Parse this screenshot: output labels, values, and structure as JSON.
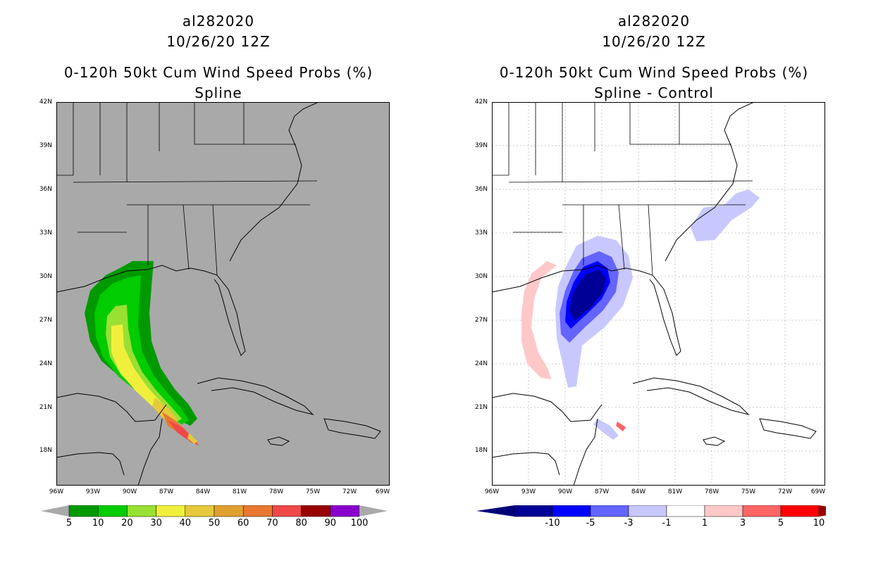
{
  "left_panel": {
    "storm_id": "al282020",
    "datetime": "10/26/20 12Z",
    "product": "0-120h 50kt Cum Wind Speed Probs (%)",
    "subtitle": "Spline",
    "background": "#a9a9a9",
    "colorbar": {
      "labels": [
        "5",
        "10",
        "20",
        "30",
        "40",
        "50",
        "60",
        "70",
        "80",
        "90",
        "100"
      ],
      "colors": [
        "#009a00",
        "#00cc00",
        "#99e033",
        "#f0f03c",
        "#e6c83c",
        "#e0a030",
        "#e87830",
        "#f04848",
        "#960000",
        "#8800cc"
      ],
      "arrow_color": "#a9a9a9"
    }
  },
  "right_panel": {
    "storm_id": "al282020",
    "datetime": "10/26/20 12Z",
    "product": "0-120h 50kt Cum Wind Speed Probs (%)",
    "subtitle": "Spline - Control",
    "background": "#ffffff",
    "colorbar": {
      "labels": [
        "-10",
        "-5",
        "-3",
        "-1",
        "1",
        "3",
        "5",
        "10"
      ],
      "colors": [
        "#000096",
        "#0000ff",
        "#6464ff",
        "#c8c8ff",
        "#ffffff",
        "#ffc8c8",
        "#ff6464",
        "#ff0000"
      ],
      "left_arrow": "#00007a",
      "right_arrow": "#960000"
    }
  },
  "axes": {
    "lat_labels": [
      "42N",
      "39N",
      "36N",
      "33N",
      "30N",
      "27N",
      "24N",
      "21N",
      "18N"
    ],
    "lon_labels": [
      "96W",
      "93W",
      "90W",
      "87W",
      "84W",
      "81W",
      "78W",
      "75W",
      "72W",
      "69W"
    ]
  }
}
